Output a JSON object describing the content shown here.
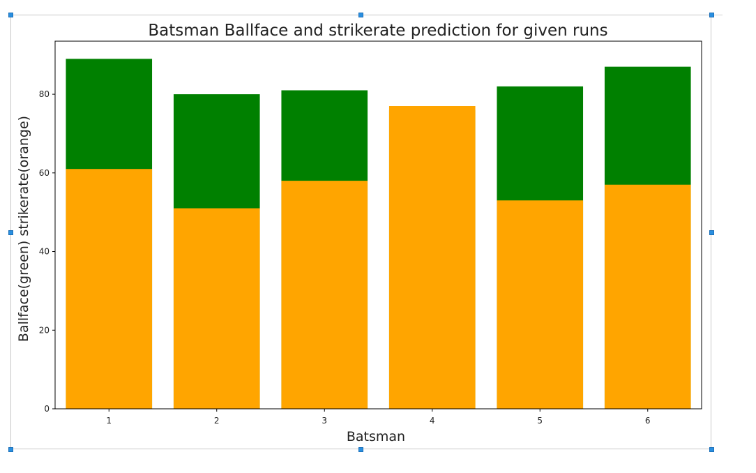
{
  "chart_data": {
    "type": "bar",
    "stacked": false,
    "title": "Batsman Ballface and strikerate prediction for given runs",
    "xlabel": "Batsman",
    "ylabel": "Ballface(green)  strikerate(orange)",
    "categories": [
      "1",
      "2",
      "3",
      "4",
      "5",
      "6"
    ],
    "series": [
      {
        "color": "#008000",
        "values": [
          89,
          80,
          81,
          76,
          82,
          87
        ]
      },
      {
        "color": "#ffa500",
        "values": [
          61,
          51,
          58,
          77,
          53,
          57
        ]
      }
    ],
    "ylim": [
      0,
      93.5
    ],
    "yticks": [
      0,
      20,
      40,
      60,
      80
    ],
    "grid": false,
    "legend": "none"
  }
}
